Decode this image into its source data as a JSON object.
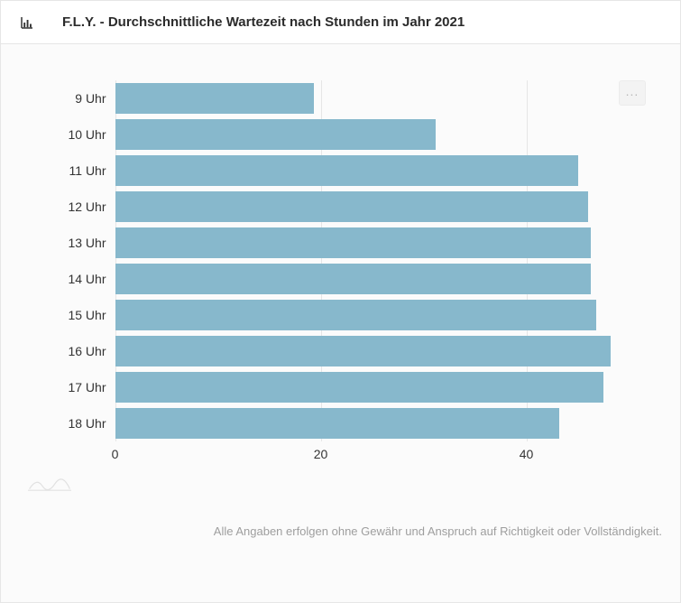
{
  "header": {
    "title": "F.L.Y. - Durchschnittliche Wartezeit nach Stunden im Jahr 2021"
  },
  "chart": {
    "type": "bar",
    "orientation": "horizontal",
    "categories": [
      "9 Uhr",
      "10 Uhr",
      "11 Uhr",
      "12 Uhr",
      "13 Uhr",
      "14 Uhr",
      "15 Uhr",
      "16 Uhr",
      "17 Uhr",
      "18 Uhr"
    ],
    "values": [
      19.3,
      31.2,
      45.0,
      46.0,
      46.3,
      46.3,
      46.8,
      48.2,
      47.5,
      43.2
    ],
    "bar_color": "#87b8cc",
    "grid_color": "#e6e6e6",
    "background_color": "#fbfbfb",
    "xlim": [
      0,
      50
    ],
    "xticks": [
      0,
      20,
      40
    ],
    "bar_height_ratio": 0.85,
    "label_fontsize": 14,
    "label_color": "#333333"
  },
  "menu_button": {
    "label": "..."
  },
  "disclaimer": "Alle Angaben erfolgen ohne Gewähr und Anspruch auf Richtigkeit oder Vollständigkeit."
}
